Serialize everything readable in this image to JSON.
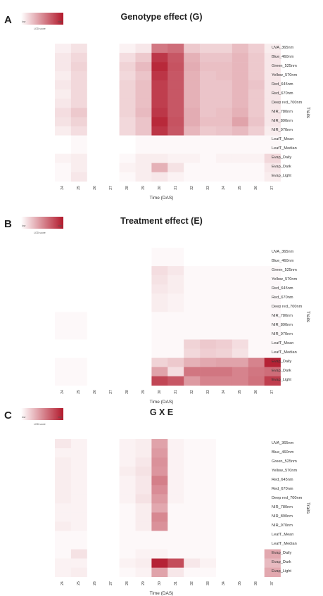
{
  "legend": {
    "low": "low",
    "high": "high",
    "title": "LOD score"
  },
  "chart_data": [
    {
      "type": "heatmap",
      "panel": "A",
      "title": "Genotype effect (G)",
      "xlabel": "Time (DAS)",
      "ylabel": "Traits",
      "x": [
        "24",
        "25",
        "26",
        "27",
        "28",
        "29",
        "30",
        "31",
        "32",
        "33",
        "34",
        "35",
        "36",
        "37"
      ],
      "y": [
        "UVA_365nm",
        "Blue_460nm",
        "Green_525nm",
        "Yellow_570nm",
        "Red_645nm",
        "Red_670nm",
        "Deep red_700nm",
        "NIR_780nm",
        "NIR_890nm",
        "NIR_970nm",
        "LeafT_Mean",
        "LeafT_Median",
        "Evap_Daily",
        "Evap_Dark",
        "Evap_Light"
      ],
      "values": [
        [
          0.05,
          0.1,
          0.0,
          0.0,
          0.04,
          0.08,
          0.55,
          0.6,
          0.2,
          0.16,
          0.16,
          0.25,
          0.18,
          0.06
        ],
        [
          0.08,
          0.14,
          0.0,
          0.0,
          0.12,
          0.2,
          0.85,
          0.7,
          0.3,
          0.22,
          0.22,
          0.28,
          0.2,
          0.08
        ],
        [
          0.08,
          0.16,
          0.0,
          0.0,
          0.16,
          0.26,
          0.92,
          0.72,
          0.32,
          0.24,
          0.24,
          0.28,
          0.2,
          0.08
        ],
        [
          0.06,
          0.14,
          0.0,
          0.0,
          0.14,
          0.22,
          0.86,
          0.7,
          0.3,
          0.22,
          0.24,
          0.28,
          0.2,
          0.08
        ],
        [
          0.08,
          0.14,
          0.0,
          0.0,
          0.16,
          0.24,
          0.82,
          0.7,
          0.3,
          0.22,
          0.22,
          0.28,
          0.22,
          0.08
        ],
        [
          0.06,
          0.14,
          0.0,
          0.0,
          0.16,
          0.24,
          0.82,
          0.7,
          0.3,
          0.22,
          0.22,
          0.28,
          0.2,
          0.08
        ],
        [
          0.08,
          0.14,
          0.0,
          0.0,
          0.16,
          0.24,
          0.82,
          0.7,
          0.3,
          0.22,
          0.22,
          0.28,
          0.2,
          0.08
        ],
        [
          0.12,
          0.2,
          0.0,
          0.0,
          0.16,
          0.26,
          0.85,
          0.7,
          0.32,
          0.22,
          0.24,
          0.3,
          0.2,
          0.08
        ],
        [
          0.1,
          0.16,
          0.0,
          0.0,
          0.14,
          0.22,
          0.92,
          0.72,
          0.32,
          0.24,
          0.24,
          0.36,
          0.22,
          0.08
        ],
        [
          0.06,
          0.12,
          0.0,
          0.0,
          0.14,
          0.22,
          0.86,
          0.7,
          0.28,
          0.2,
          0.22,
          0.26,
          0.18,
          0.06
        ],
        [
          0.0,
          0.02,
          0.0,
          0.0,
          0.0,
          0.02,
          0.02,
          0.02,
          0.02,
          0.02,
          0.02,
          0.02,
          0.02,
          0.02
        ],
        [
          0.0,
          0.02,
          0.0,
          0.0,
          0.0,
          0.02,
          0.02,
          0.02,
          0.02,
          0.02,
          0.02,
          0.02,
          0.02,
          0.02
        ],
        [
          0.04,
          0.06,
          0.0,
          0.0,
          0.02,
          0.06,
          0.06,
          0.04,
          0.04,
          0.02,
          0.04,
          0.04,
          0.04,
          0.14
        ],
        [
          0.02,
          0.06,
          0.0,
          0.0,
          0.04,
          0.06,
          0.3,
          0.1,
          0.02,
          0.02,
          0.02,
          0.02,
          0.02,
          0.08
        ],
        [
          0.02,
          0.08,
          0.0,
          0.0,
          0.02,
          0.06,
          0.08,
          0.04,
          0.02,
          0.02,
          0.02,
          0.02,
          0.02,
          0.06
        ]
      ]
    },
    {
      "type": "heatmap",
      "panel": "B",
      "title": "Treatment effect (E)",
      "xlabel": "Time (DAS)",
      "ylabel": "Traits",
      "x": [
        "24",
        "25",
        "26",
        "27",
        "28",
        "29",
        "30",
        "31",
        "32",
        "33",
        "34",
        "35",
        "36",
        "37"
      ],
      "y": [
        "UVA_365nm",
        "Blue_460nm",
        "Green_525nm",
        "Yellow_570nm",
        "Red_645nm",
        "Red_670nm",
        "Deep red_700nm",
        "NIR_780nm",
        "NIR_890nm",
        "NIR_970nm",
        "LeafT_Mean",
        "LeafT_Median",
        "Evap_Daily",
        "Evap_Dark",
        "Evap_Light"
      ],
      "values": [
        [
          0.0,
          0.0,
          0.0,
          0.0,
          0.0,
          0.0,
          0.02,
          0.02,
          0.0,
          0.0,
          0.0,
          0.0,
          0.0,
          0.0
        ],
        [
          0.0,
          0.0,
          0.0,
          0.0,
          0.0,
          0.0,
          0.02,
          0.02,
          0.0,
          0.0,
          0.0,
          0.0,
          0.0,
          0.0
        ],
        [
          0.0,
          0.0,
          0.0,
          0.0,
          0.0,
          0.0,
          0.12,
          0.08,
          0.02,
          0.02,
          0.02,
          0.02,
          0.02,
          0.02
        ],
        [
          0.0,
          0.0,
          0.0,
          0.0,
          0.0,
          0.0,
          0.1,
          0.06,
          0.02,
          0.02,
          0.02,
          0.02,
          0.02,
          0.02
        ],
        [
          0.0,
          0.0,
          0.0,
          0.0,
          0.0,
          0.0,
          0.08,
          0.06,
          0.02,
          0.02,
          0.02,
          0.02,
          0.02,
          0.02
        ],
        [
          0.0,
          0.0,
          0.0,
          0.0,
          0.0,
          0.0,
          0.06,
          0.04,
          0.02,
          0.02,
          0.02,
          0.02,
          0.02,
          0.02
        ],
        [
          0.0,
          0.0,
          0.0,
          0.0,
          0.0,
          0.0,
          0.06,
          0.04,
          0.02,
          0.02,
          0.02,
          0.02,
          0.02,
          0.02
        ],
        [
          0.02,
          0.02,
          0.0,
          0.0,
          0.0,
          0.0,
          0.02,
          0.02,
          0.02,
          0.02,
          0.02,
          0.02,
          0.02,
          0.02
        ],
        [
          0.02,
          0.02,
          0.0,
          0.0,
          0.0,
          0.0,
          0.02,
          0.02,
          0.02,
          0.02,
          0.02,
          0.02,
          0.02,
          0.02
        ],
        [
          0.02,
          0.02,
          0.0,
          0.0,
          0.0,
          0.0,
          0.02,
          0.02,
          0.02,
          0.02,
          0.02,
          0.02,
          0.02,
          0.02
        ],
        [
          0.0,
          0.0,
          0.0,
          0.0,
          0.0,
          0.0,
          0.02,
          0.02,
          0.16,
          0.2,
          0.18,
          0.12,
          0.02,
          0.02
        ],
        [
          0.0,
          0.0,
          0.0,
          0.0,
          0.0,
          0.0,
          0.02,
          0.02,
          0.14,
          0.18,
          0.16,
          0.1,
          0.02,
          0.02
        ],
        [
          0.02,
          0.02,
          0.0,
          0.0,
          0.0,
          0.0,
          0.16,
          0.2,
          0.3,
          0.34,
          0.36,
          0.36,
          0.5,
          0.95
        ],
        [
          0.02,
          0.02,
          0.0,
          0.0,
          0.0,
          0.0,
          0.36,
          0.12,
          0.56,
          0.56,
          0.56,
          0.5,
          0.56,
          0.6
        ],
        [
          0.02,
          0.02,
          0.0,
          0.0,
          0.0,
          0.0,
          0.78,
          0.7,
          0.4,
          0.5,
          0.5,
          0.5,
          0.58,
          0.82
        ]
      ]
    },
    {
      "type": "heatmap",
      "panel": "C",
      "title": "G X E",
      "xlabel": "Time (DAS)",
      "ylabel": "Traits",
      "x": [
        "24",
        "25",
        "26",
        "27",
        "28",
        "29",
        "30",
        "31",
        "32",
        "33",
        "34",
        "35",
        "36",
        "37"
      ],
      "y": [
        "UVA_365nm",
        "Blue_460nm",
        "Green_525nm",
        "Yellow_570nm",
        "Red_645nm",
        "Red_670nm",
        "Deep red_700nm",
        "NIR_780nm",
        "NIR_890nm",
        "NIR_970nm",
        "LeafT_Mean",
        "LeafT_Median",
        "Evap_Daily",
        "Evap_Dark",
        "Evap_Light"
      ],
      "values": [
        [
          0.08,
          0.04,
          0.0,
          0.0,
          0.04,
          0.06,
          0.36,
          0.04,
          0.02,
          0.02,
          0.0,
          0.0,
          0.0,
          0.0
        ],
        [
          0.04,
          0.04,
          0.0,
          0.0,
          0.04,
          0.06,
          0.4,
          0.04,
          0.02,
          0.02,
          0.0,
          0.0,
          0.0,
          0.0
        ],
        [
          0.06,
          0.04,
          0.0,
          0.0,
          0.04,
          0.08,
          0.44,
          0.04,
          0.02,
          0.02,
          0.0,
          0.0,
          0.0,
          0.0
        ],
        [
          0.06,
          0.04,
          0.0,
          0.0,
          0.06,
          0.1,
          0.42,
          0.04,
          0.02,
          0.02,
          0.0,
          0.0,
          0.0,
          0.0
        ],
        [
          0.06,
          0.04,
          0.0,
          0.0,
          0.04,
          0.08,
          0.52,
          0.04,
          0.02,
          0.02,
          0.0,
          0.0,
          0.0,
          0.0
        ],
        [
          0.06,
          0.04,
          0.0,
          0.0,
          0.04,
          0.08,
          0.46,
          0.04,
          0.02,
          0.02,
          0.0,
          0.0,
          0.0,
          0.0
        ],
        [
          0.06,
          0.04,
          0.0,
          0.0,
          0.04,
          0.1,
          0.4,
          0.04,
          0.02,
          0.02,
          0.0,
          0.0,
          0.0,
          0.0
        ],
        [
          0.04,
          0.04,
          0.0,
          0.0,
          0.02,
          0.06,
          0.34,
          0.02,
          0.02,
          0.02,
          0.0,
          0.0,
          0.0,
          0.0
        ],
        [
          0.04,
          0.04,
          0.0,
          0.0,
          0.02,
          0.06,
          0.48,
          0.02,
          0.02,
          0.02,
          0.0,
          0.0,
          0.0,
          0.0
        ],
        [
          0.06,
          0.04,
          0.0,
          0.0,
          0.02,
          0.06,
          0.44,
          0.02,
          0.02,
          0.02,
          0.0,
          0.0,
          0.0,
          0.0
        ],
        [
          0.02,
          0.02,
          0.0,
          0.0,
          0.02,
          0.02,
          0.02,
          0.02,
          0.02,
          0.02,
          0.0,
          0.0,
          0.0,
          0.0
        ],
        [
          0.02,
          0.02,
          0.0,
          0.0,
          0.02,
          0.02,
          0.02,
          0.02,
          0.02,
          0.02,
          0.0,
          0.0,
          0.0,
          0.0
        ],
        [
          0.02,
          0.1,
          0.0,
          0.0,
          0.02,
          0.04,
          0.04,
          0.02,
          0.02,
          0.02,
          0.0,
          0.0,
          0.0,
          0.34
        ],
        [
          0.04,
          0.04,
          0.0,
          0.0,
          0.04,
          0.06,
          0.95,
          0.75,
          0.08,
          0.04,
          0.0,
          0.0,
          0.0,
          0.26
        ],
        [
          0.04,
          0.06,
          0.0,
          0.0,
          0.02,
          0.04,
          0.36,
          0.08,
          0.02,
          0.02,
          0.0,
          0.0,
          0.0,
          0.34
        ]
      ]
    }
  ]
}
